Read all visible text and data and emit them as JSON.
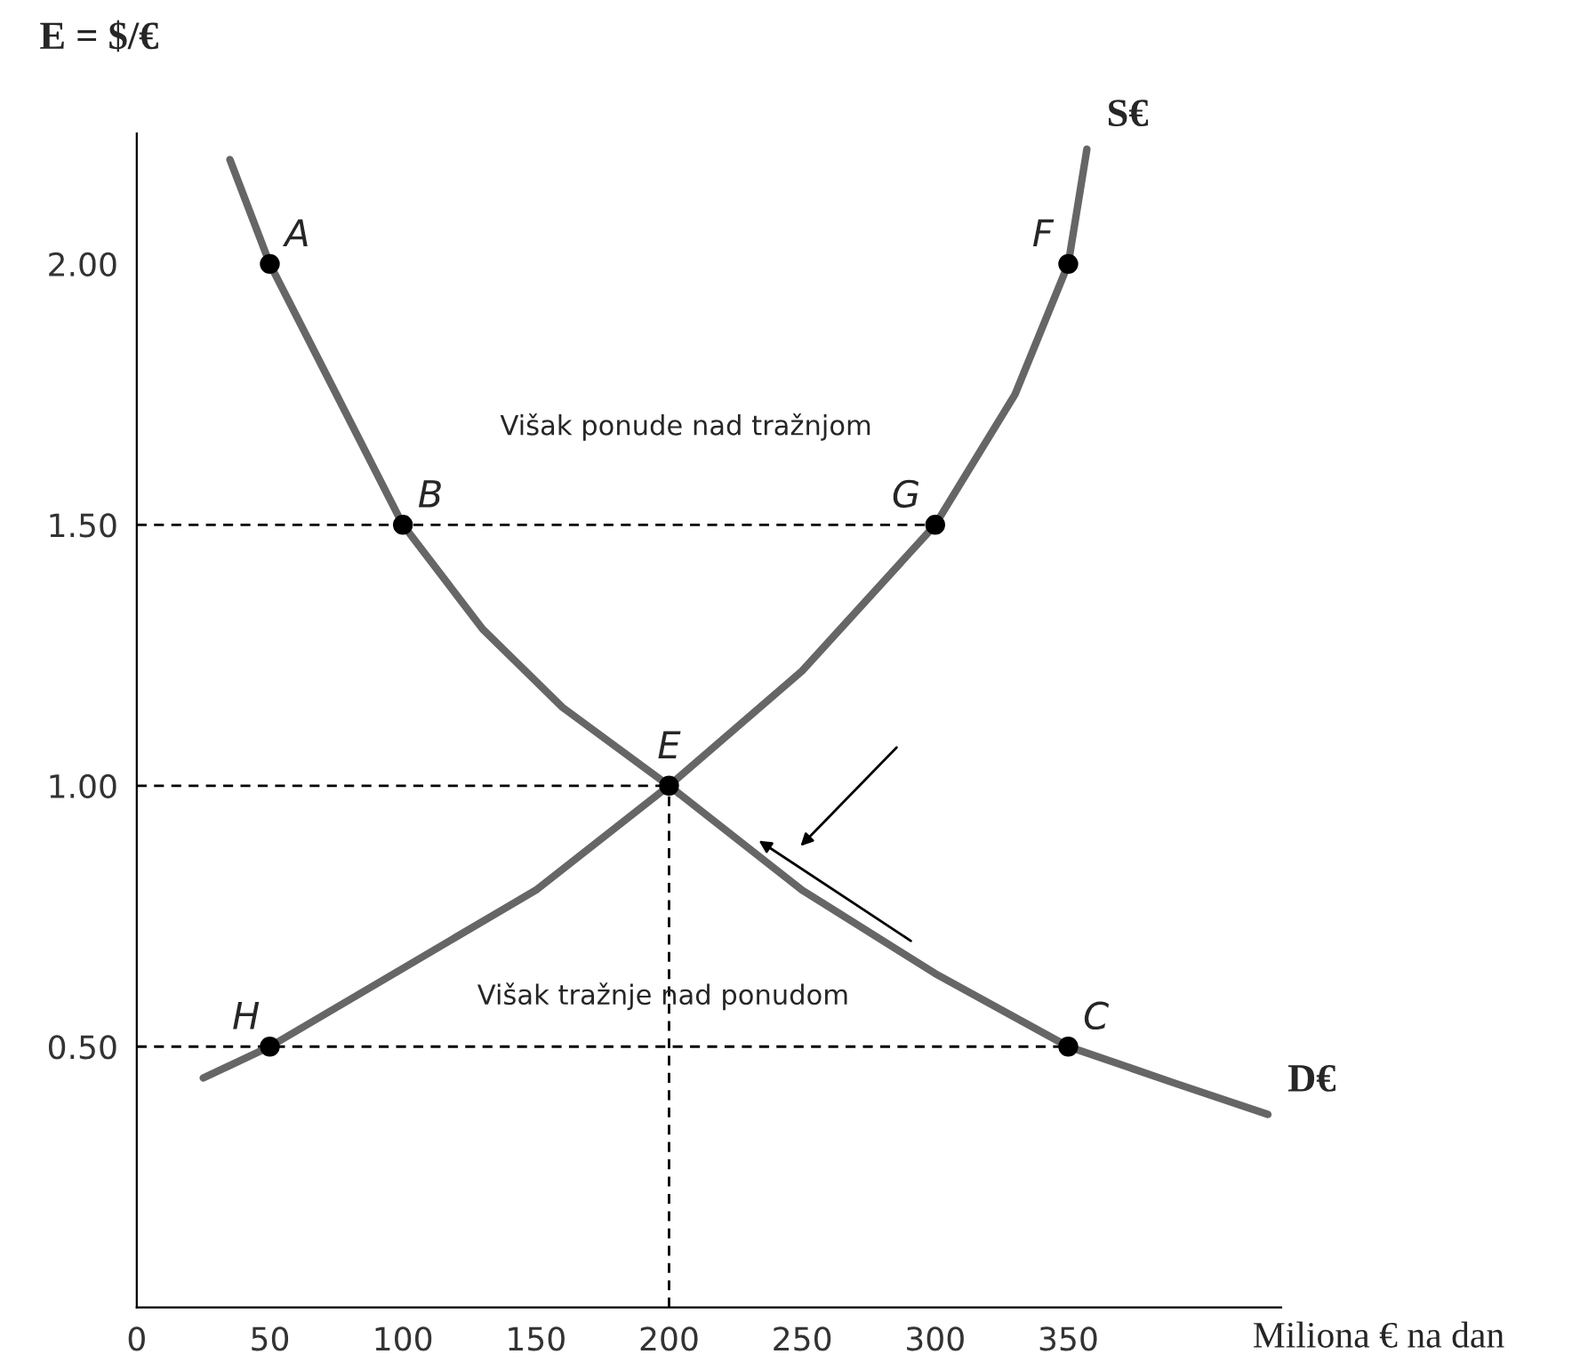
{
  "chart_data": {
    "type": "line",
    "ylabel": "E = $/€",
    "xlabel": "Miliona € na dan",
    "xlim": [
      0,
      430
    ],
    "ylim": [
      0,
      2.25
    ],
    "xticks": [
      0,
      50,
      100,
      150,
      200,
      250,
      300,
      350
    ],
    "yticks": [
      {
        "value": 0.5,
        "label": "0.50"
      },
      {
        "value": 1.0,
        "label": "1.00"
      },
      {
        "value": 1.5,
        "label": "1.50"
      },
      {
        "value": 2.0,
        "label": "2.00"
      }
    ],
    "grid": false,
    "legend": false,
    "series": [
      {
        "name": "D€",
        "color": "#666666",
        "x": [
          35,
          50,
          70,
          100,
          130,
          160,
          200,
          250,
          300,
          350,
          390,
          425
        ],
        "values": [
          2.2,
          2.0,
          1.8,
          1.5,
          1.3,
          1.15,
          1.0,
          0.8,
          0.64,
          0.5,
          0.43,
          0.37
        ]
      },
      {
        "name": "S€",
        "color": "#666666",
        "x": [
          25,
          50,
          100,
          150,
          200,
          250,
          300,
          330,
          350,
          357
        ],
        "values": [
          0.44,
          0.5,
          0.65,
          0.8,
          1.0,
          1.22,
          1.5,
          1.75,
          2.0,
          2.22
        ]
      },
      {
        "type": "line",
        "color": "#000000",
        "line_style": "dashed",
        "x": [
          0,
          300
        ],
        "values": [
          1.5,
          1.5
        ]
      },
      {
        "type": "line",
        "color": "#000000",
        "line_style": "dashed",
        "x": [
          0,
          200
        ],
        "values": [
          1.0,
          1.0
        ]
      },
      {
        "type": "line",
        "color": "#000000",
        "line_style": "dashed",
        "x": [
          0,
          350
        ],
        "values": [
          0.5,
          0.5
        ]
      },
      {
        "type": "line",
        "color": "#000000",
        "line_style": "dashed",
        "x": [
          200,
          200
        ],
        "values": [
          0,
          1.0
        ]
      },
      {
        "type": "scatter",
        "color": "#000000",
        "marker": "circle",
        "x": [
          50,
          100,
          200,
          350,
          50,
          300,
          350
        ],
        "values": [
          2.0,
          1.5,
          1.0,
          0.5,
          0.5,
          1.5,
          2.0
        ]
      }
    ],
    "annotations": [
      {
        "text": "A",
        "x": 50,
        "y": 2.0
      },
      {
        "text": "B",
        "x": 100,
        "y": 1.5
      },
      {
        "text": "E",
        "x": 200,
        "y": 1.0
      },
      {
        "text": "C",
        "x": 350,
        "y": 0.5
      },
      {
        "text": "H",
        "x": 50,
        "y": 0.5
      },
      {
        "text": "G",
        "x": 300,
        "y": 1.5
      },
      {
        "text": "F",
        "x": 350,
        "y": 2.0
      },
      "Višak ponude nad tražnjom",
      "Višak tražnje nad ponudom"
    ]
  }
}
